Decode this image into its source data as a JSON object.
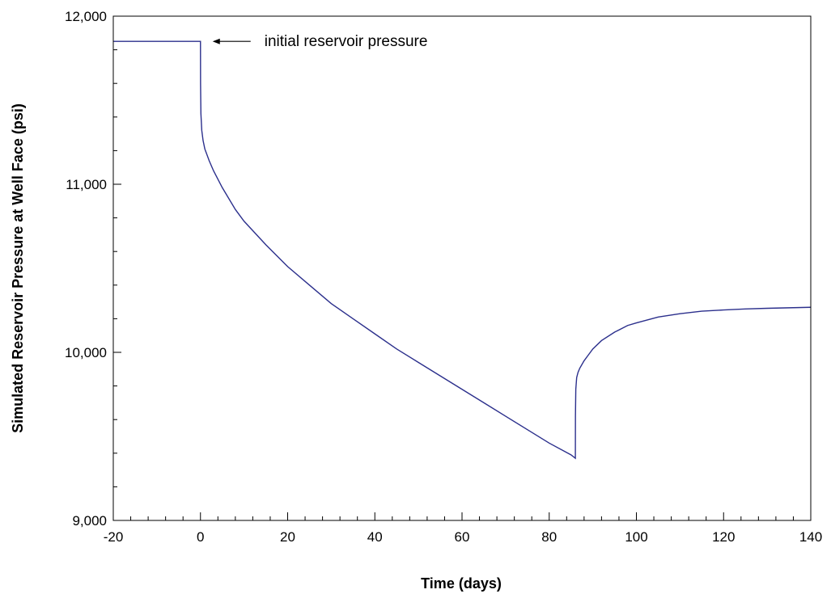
{
  "chart_data": {
    "type": "line",
    "title": "",
    "xlabel": "Time (days)",
    "ylabel": "Simulated Reservoir Pressure at Well Face (psi)",
    "xlim": [
      -20,
      140
    ],
    "ylim": [
      9000,
      12000
    ],
    "x_ticks": [
      -20,
      0,
      20,
      40,
      60,
      80,
      100,
      120,
      140
    ],
    "x_tick_labels": [
      "-20",
      "0",
      "20",
      "40",
      "60",
      "80",
      "100",
      "120",
      "140"
    ],
    "y_ticks": [
      9000,
      10000,
      11000,
      12000
    ],
    "y_tick_labels": [
      "9,000",
      "10,000",
      "11,000",
      "12,000"
    ],
    "grid": false,
    "line_color": "#2b2f8c",
    "series": [
      {
        "x": [
          -20,
          0,
          0.02,
          0.1,
          0.3,
          0.6,
          1,
          2,
          3,
          5,
          8,
          10,
          15,
          20,
          25,
          30,
          35,
          40,
          45,
          50,
          55,
          60,
          65,
          70,
          75,
          80,
          85,
          86,
          86.02,
          86.1,
          86.3,
          86.6,
          87,
          88,
          89,
          90,
          92,
          95,
          98,
          100,
          105,
          110,
          115,
          120,
          125,
          130,
          135,
          140
        ],
        "y": [
          11850,
          11850,
          11600,
          11420,
          11320,
          11260,
          11210,
          11140,
          11080,
          10980,
          10850,
          10780,
          10640,
          10510,
          10400,
          10290,
          10200,
          10110,
          10020,
          9940,
          9860,
          9780,
          9700,
          9620,
          9540,
          9460,
          9390,
          9370,
          9620,
          9780,
          9850,
          9880,
          9905,
          9950,
          9985,
          10020,
          10070,
          10120,
          10160,
          10175,
          10210,
          10230,
          10245,
          10252,
          10258,
          10262,
          10265,
          10268
        ]
      }
    ],
    "annotations": [
      {
        "text": "initial reservoir pressure",
        "arrow_to": [
          0,
          11850
        ]
      }
    ]
  }
}
